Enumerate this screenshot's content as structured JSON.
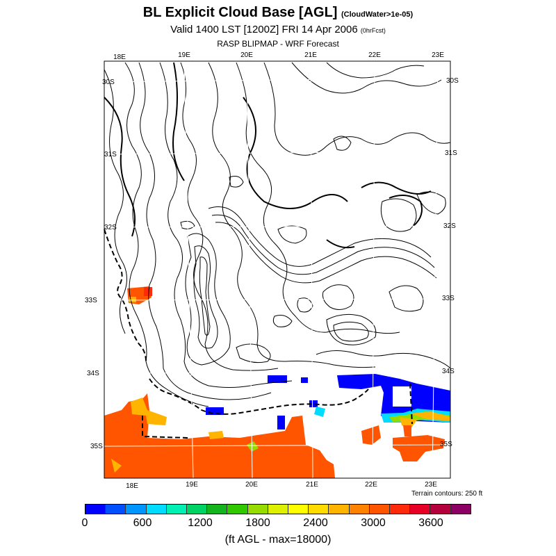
{
  "header": {
    "title": "BL Explicit Cloud Base [AGL]",
    "title_note": "(CloudWater>1e-05)",
    "valid": "Valid 1400 LST [1200Z] FRI 14 Apr 2006",
    "valid_note": "(0hrFcst)",
    "model": "RASP BLIPMAP - WRF Forecast"
  },
  "map": {
    "lon_top": [
      "18E",
      "19E",
      "20E",
      "21E",
      "22E",
      "23E"
    ],
    "lon_bottom": [
      "18E",
      "19E",
      "20E",
      "21E",
      "22E",
      "23E"
    ],
    "lat_left": [
      "30S",
      "31S",
      "32S",
      "33S",
      "34S",
      "35S"
    ],
    "lat_right": [
      "30S",
      "31S",
      "32S",
      "33S",
      "34S",
      "35S"
    ],
    "terrain_note": "Terrain contours: 250 ft"
  },
  "colorbar": {
    "colors": [
      "#0000ff",
      "#0050ff",
      "#0096ff",
      "#00dcff",
      "#00f0b4",
      "#00d264",
      "#14b41e",
      "#32c800",
      "#96dc00",
      "#dcf000",
      "#ffff00",
      "#ffdc00",
      "#ffb400",
      "#ff8200",
      "#ff5500",
      "#ff2a0a",
      "#e60028",
      "#b4003c",
      "#8c0064"
    ],
    "labels": [
      "0",
      "600",
      "1200",
      "1800",
      "2400",
      "3000",
      "3600"
    ],
    "units": "(ft AGL - max=18000)"
  }
}
